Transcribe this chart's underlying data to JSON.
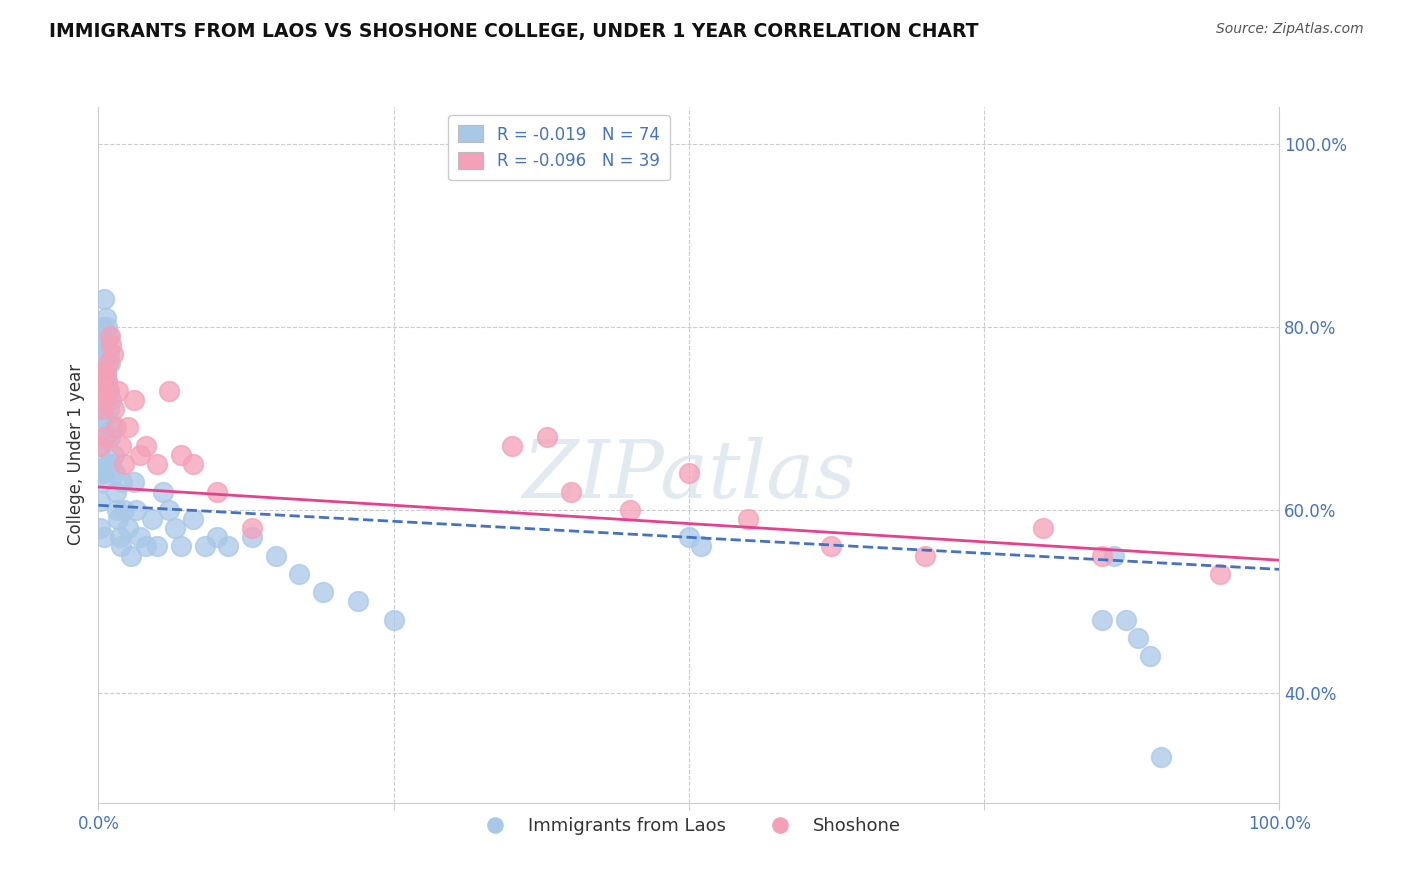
{
  "title": "IMMIGRANTS FROM LAOS VS SHOSHONE COLLEGE, UNDER 1 YEAR CORRELATION CHART",
  "source": "Source: ZipAtlas.com",
  "ylabel": "College, Under 1 year",
  "xlim": [
    0.0,
    1.0
  ],
  "ylim": [
    0.28,
    1.04
  ],
  "y_ticks_right": [
    0.4,
    0.6,
    0.8,
    1.0
  ],
  "y_tick_labels_right": [
    "40.0%",
    "60.0%",
    "80.0%",
    "100.0%"
  ],
  "color_blue": "#a8c8e8",
  "color_pink": "#f4a0b8",
  "line_color_blue": "#4472c4",
  "line_color_pink": "#e8408c",
  "watermark_text": "ZIPatlas",
  "legend_label1": "Immigrants from Laos",
  "legend_label2": "Shoshone",
  "legend_r1": "R = -0.019",
  "legend_n1": "N = 74",
  "legend_r2": "R = -0.096",
  "legend_n2": "N = 39",
  "blue_trend_start": 0.605,
  "blue_trend_end": 0.535,
  "pink_trend_start": 0.625,
  "pink_trend_end": 0.545,
  "blue_x": [
    0.001,
    0.001,
    0.002,
    0.002,
    0.002,
    0.003,
    0.003,
    0.003,
    0.003,
    0.004,
    0.004,
    0.004,
    0.004,
    0.005,
    0.005,
    0.005,
    0.005,
    0.005,
    0.005,
    0.006,
    0.006,
    0.006,
    0.007,
    0.007,
    0.007,
    0.008,
    0.008,
    0.008,
    0.009,
    0.009,
    0.01,
    0.01,
    0.011,
    0.011,
    0.012,
    0.013,
    0.014,
    0.015,
    0.016,
    0.017,
    0.018,
    0.019,
    0.02,
    0.022,
    0.025,
    0.028,
    0.03,
    0.032,
    0.035,
    0.04,
    0.045,
    0.05,
    0.055,
    0.06,
    0.065,
    0.07,
    0.08,
    0.09,
    0.1,
    0.11,
    0.13,
    0.15,
    0.17,
    0.19,
    0.22,
    0.25,
    0.5,
    0.51,
    0.85,
    0.86,
    0.87,
    0.88,
    0.89,
    0.9
  ],
  "blue_y": [
    0.61,
    0.58,
    0.75,
    0.73,
    0.67,
    0.78,
    0.74,
    0.7,
    0.63,
    0.8,
    0.77,
    0.72,
    0.64,
    0.83,
    0.79,
    0.75,
    0.7,
    0.64,
    0.57,
    0.81,
    0.75,
    0.68,
    0.8,
    0.74,
    0.65,
    0.79,
    0.73,
    0.65,
    0.77,
    0.71,
    0.76,
    0.68,
    0.72,
    0.65,
    0.69,
    0.66,
    0.64,
    0.62,
    0.6,
    0.59,
    0.57,
    0.56,
    0.63,
    0.6,
    0.58,
    0.55,
    0.63,
    0.6,
    0.57,
    0.56,
    0.59,
    0.56,
    0.62,
    0.6,
    0.58,
    0.56,
    0.59,
    0.56,
    0.57,
    0.56,
    0.57,
    0.55,
    0.53,
    0.51,
    0.5,
    0.48,
    0.57,
    0.56,
    0.48,
    0.55,
    0.48,
    0.46,
    0.44,
    0.33
  ],
  "pink_x": [
    0.001,
    0.002,
    0.003,
    0.004,
    0.005,
    0.005,
    0.006,
    0.007,
    0.008,
    0.009,
    0.01,
    0.011,
    0.012,
    0.013,
    0.015,
    0.017,
    0.019,
    0.022,
    0.025,
    0.03,
    0.035,
    0.04,
    0.05,
    0.06,
    0.07,
    0.08,
    0.1,
    0.13,
    0.35,
    0.38,
    0.4,
    0.45,
    0.5,
    0.55,
    0.62,
    0.7,
    0.8,
    0.85,
    0.95
  ],
  "pink_y": [
    0.67,
    0.73,
    0.71,
    0.75,
    0.72,
    0.68,
    0.75,
    0.74,
    0.76,
    0.73,
    0.79,
    0.78,
    0.77,
    0.71,
    0.69,
    0.73,
    0.67,
    0.65,
    0.69,
    0.72,
    0.66,
    0.67,
    0.65,
    0.73,
    0.66,
    0.65,
    0.62,
    0.58,
    0.67,
    0.68,
    0.62,
    0.6,
    0.64,
    0.59,
    0.56,
    0.55,
    0.58,
    0.55,
    0.53
  ]
}
